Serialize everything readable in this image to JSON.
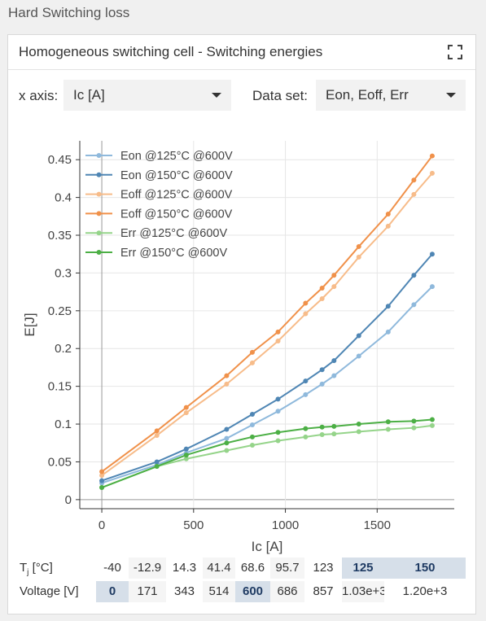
{
  "app": {
    "title": "Hard Switching loss"
  },
  "panel": {
    "title": "Homogeneous switching cell - Switching energies"
  },
  "controls": {
    "x_axis_label": "x axis:",
    "x_axis_value": "Ic [A]",
    "dataset_label": "Data set:",
    "dataset_value": "Eon, Eoff, Err"
  },
  "chart_data": {
    "type": "line",
    "xlabel": "Ic [A]",
    "ylabel": "E[J]",
    "xlim": [
      -120,
      1920
    ],
    "ylim": [
      -0.012,
      0.475
    ],
    "xticks": [
      0,
      500,
      1000,
      1500
    ],
    "yticks": [
      0,
      0.05,
      0.1,
      0.15,
      0.2,
      0.25,
      0.3,
      0.35,
      0.4,
      0.45
    ],
    "ytick_labels": [
      "0",
      "0.05",
      "0.1",
      "0.15",
      "0.2",
      "0.25",
      "0.3",
      "0.35",
      "0.4",
      "0.45"
    ],
    "grid": true,
    "legend_position": "top-left",
    "series": [
      {
        "name": "Eon  @125°C @600V",
        "color": "#8fb9dc",
        "x": [
          0,
          300,
          460,
          680,
          820,
          960,
          1110,
          1200,
          1265,
          1400,
          1560,
          1700,
          1800
        ],
        "y": [
          0.022,
          0.046,
          0.062,
          0.081,
          0.099,
          0.117,
          0.139,
          0.153,
          0.164,
          0.19,
          0.222,
          0.258,
          0.282
        ]
      },
      {
        "name": "Eon  @150°C @600V",
        "color": "#4f86b4",
        "x": [
          0,
          300,
          460,
          680,
          820,
          960,
          1110,
          1200,
          1265,
          1400,
          1560,
          1700,
          1800
        ],
        "y": [
          0.025,
          0.05,
          0.067,
          0.093,
          0.113,
          0.133,
          0.157,
          0.172,
          0.184,
          0.217,
          0.256,
          0.297,
          0.325
        ]
      },
      {
        "name": "Eoff  @125°C @600V",
        "color": "#f7bc8a",
        "x": [
          0,
          300,
          460,
          680,
          820,
          960,
          1110,
          1200,
          1265,
          1400,
          1560,
          1700,
          1800
        ],
        "y": [
          0.032,
          0.085,
          0.115,
          0.153,
          0.181,
          0.21,
          0.246,
          0.266,
          0.282,
          0.321,
          0.362,
          0.404,
          0.432
        ]
      },
      {
        "name": "Eoff  @150°C @600V",
        "color": "#f0914a",
        "x": [
          0,
          300,
          460,
          680,
          820,
          960,
          1110,
          1200,
          1265,
          1400,
          1560,
          1700,
          1800
        ],
        "y": [
          0.037,
          0.091,
          0.122,
          0.164,
          0.195,
          0.222,
          0.26,
          0.28,
          0.297,
          0.335,
          0.378,
          0.423,
          0.455
        ]
      },
      {
        "name": "Err  @125°C @600V",
        "color": "#95d48a",
        "x": [
          0,
          300,
          460,
          680,
          820,
          960,
          1110,
          1200,
          1265,
          1400,
          1560,
          1700,
          1800
        ],
        "y": [
          0.016,
          0.044,
          0.054,
          0.065,
          0.072,
          0.078,
          0.083,
          0.086,
          0.087,
          0.09,
          0.093,
          0.095,
          0.098
        ]
      },
      {
        "name": "Err  @150°C @600V",
        "color": "#4caf45",
        "x": [
          0,
          300,
          460,
          680,
          820,
          960,
          1110,
          1200,
          1265,
          1400,
          1560,
          1700,
          1800
        ],
        "y": [
          0.016,
          0.044,
          0.059,
          0.075,
          0.083,
          0.089,
          0.094,
          0.096,
          0.097,
          0.1,
          0.103,
          0.104,
          0.106
        ]
      }
    ]
  },
  "params": {
    "tj_label": "T",
    "tj_sub": "j",
    "tj_unit": " [°C]",
    "tj_values": [
      "-40",
      "-12.9",
      "14.3",
      "41.4",
      "68.6",
      "95.7",
      "123",
      "125",
      "150"
    ],
    "tj_selected": [
      "125",
      "150"
    ],
    "voltage_label": "Voltage [V]",
    "voltage_values": [
      "0",
      "171",
      "343",
      "514",
      "600",
      "686",
      "857",
      "1.03e+3",
      "1.20e+3"
    ],
    "voltage_selected": [
      "0",
      "600"
    ]
  }
}
